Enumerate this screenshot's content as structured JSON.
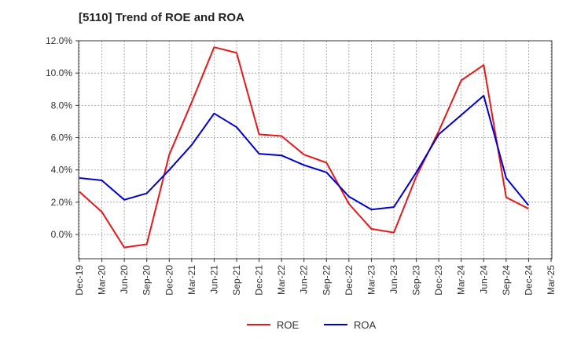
{
  "chart_data": {
    "type": "line",
    "title": "[5110]  Trend of ROE and ROA",
    "xlabel": "",
    "ylabel": "",
    "categories": [
      "Dec-19",
      "Mar-20",
      "Jun-20",
      "Sep-20",
      "Dec-20",
      "Mar-21",
      "Jun-21",
      "Sep-21",
      "Dec-21",
      "Mar-22",
      "Jun-22",
      "Sep-22",
      "Dec-22",
      "Mar-23",
      "Jun-23",
      "Sep-23",
      "Dec-23",
      "Mar-24",
      "Jun-24",
      "Sep-24",
      "Dec-24",
      "Mar-25"
    ],
    "y_ticks": [
      "12.0%",
      "10.0%",
      "8.0%",
      "6.0%",
      "4.0%",
      "2.0%",
      "0.0%"
    ],
    "y_tick_values": [
      12,
      10,
      8,
      6,
      4,
      2,
      0
    ],
    "ylim": [
      -1.5,
      12.0
    ],
    "grid": true,
    "legend_position": "bottom-center",
    "series": [
      {
        "name": "ROE",
        "color": "#e31a1c",
        "values": [
          2.65,
          1.4,
          -0.8,
          -0.6,
          4.95,
          8.2,
          11.6,
          11.25,
          6.2,
          6.1,
          4.95,
          4.45,
          1.9,
          0.35,
          0.12,
          3.6,
          6.4,
          9.55,
          10.5,
          2.3,
          1.6,
          null
        ]
      },
      {
        "name": "ROA",
        "color": "#0000cc",
        "values": [
          3.5,
          3.35,
          2.15,
          2.55,
          4.0,
          5.55,
          7.5,
          6.65,
          5.0,
          4.9,
          4.3,
          3.85,
          2.35,
          1.55,
          1.7,
          3.85,
          6.2,
          7.4,
          8.6,
          3.5,
          1.8,
          null
        ]
      }
    ]
  }
}
